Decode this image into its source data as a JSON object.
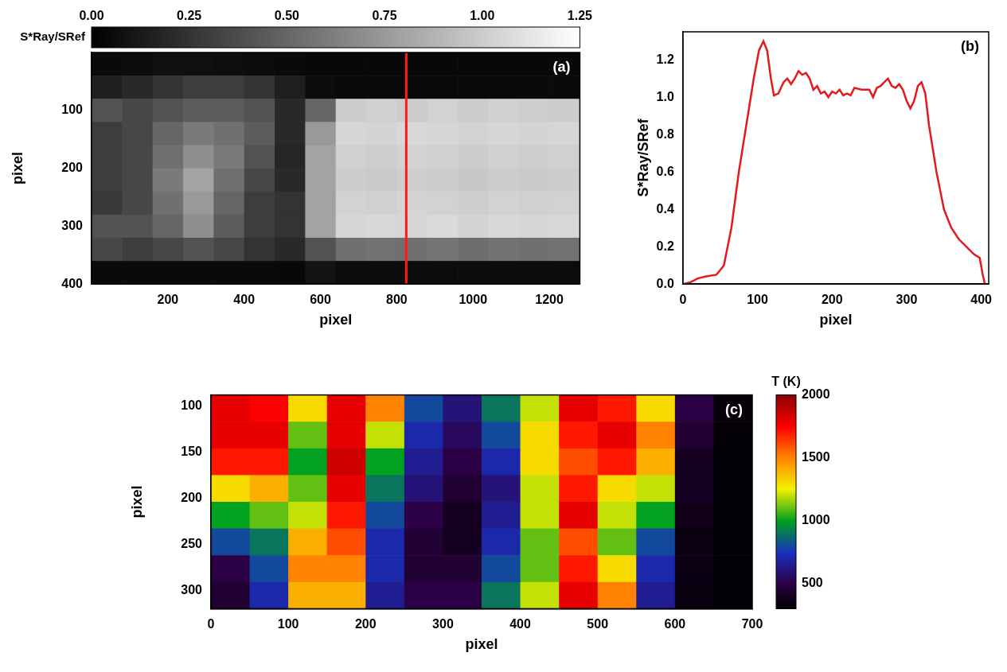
{
  "chart_data": [
    {
      "type": "heatmap",
      "title": "(a)",
      "x_label": "pixel",
      "y_label": "pixel",
      "xlim": [
        0,
        1280
      ],
      "xticks": [
        200,
        400,
        600,
        800,
        1000,
        1200
      ],
      "ylim": [
        0,
        400
      ],
      "yticks": [
        100,
        200,
        300,
        400
      ],
      "grid": false,
      "x_edges": [
        0,
        80,
        160,
        240,
        320,
        400,
        480,
        560,
        640,
        720,
        800,
        880,
        960,
        1040,
        1120,
        1200,
        1280
      ],
      "y_edges": [
        0,
        40,
        80,
        120,
        160,
        200,
        240,
        280,
        320,
        360,
        400
      ],
      "cells": [
        [
          0.05,
          0.06,
          0.08,
          0.08,
          0.07,
          0.06,
          0.05,
          0.04,
          0.04,
          0.04,
          0.04,
          0.04,
          0.04,
          0.04,
          0.04,
          0.04
        ],
        [
          0.15,
          0.2,
          0.25,
          0.3,
          0.3,
          0.25,
          0.15,
          0.06,
          0.05,
          0.05,
          0.05,
          0.05,
          0.05,
          0.05,
          0.05,
          0.05
        ],
        [
          0.4,
          0.35,
          0.4,
          0.45,
          0.45,
          0.4,
          0.2,
          0.5,
          1.0,
          1.02,
          1.0,
          1.03,
          1.0,
          1.02,
          1.01,
          1.0
        ],
        [
          0.3,
          0.35,
          0.5,
          0.6,
          0.55,
          0.45,
          0.2,
          0.75,
          1.05,
          1.04,
          1.06,
          1.05,
          1.03,
          1.05,
          1.04,
          1.05
        ],
        [
          0.3,
          0.35,
          0.55,
          0.7,
          0.6,
          0.4,
          0.18,
          0.8,
          1.02,
          1.01,
          1.03,
          1.02,
          1.0,
          1.02,
          1.01,
          1.02
        ],
        [
          0.3,
          0.35,
          0.6,
          0.8,
          0.55,
          0.35,
          0.2,
          0.8,
          1.0,
          0.99,
          1.01,
          1.0,
          0.98,
          1.0,
          0.99,
          1.0
        ],
        [
          0.28,
          0.35,
          0.55,
          0.75,
          0.5,
          0.3,
          0.25,
          0.8,
          1.03,
          1.02,
          1.04,
          1.03,
          1.01,
          1.03,
          1.02,
          1.03
        ],
        [
          0.4,
          0.4,
          0.5,
          0.7,
          0.45,
          0.3,
          0.25,
          0.8,
          1.05,
          1.06,
          1.05,
          1.07,
          1.04,
          1.06,
          1.05,
          1.06
        ],
        [
          0.35,
          0.3,
          0.35,
          0.4,
          0.35,
          0.25,
          0.2,
          0.4,
          0.55,
          0.56,
          0.55,
          0.57,
          0.54,
          0.56,
          0.55,
          0.56
        ],
        [
          0.05,
          0.05,
          0.05,
          0.05,
          0.05,
          0.05,
          0.04,
          0.1,
          0.06,
          0.06,
          0.06,
          0.06,
          0.06,
          0.06,
          0.06,
          0.06
        ]
      ],
      "colorbar": {
        "label": "S*Ray/SRef",
        "range": [
          0,
          1.25
        ],
        "ticks": [
          {
            "value": 0,
            "label": "0.00"
          },
          {
            "value": 0.25,
            "label": "0.25"
          },
          {
            "value": 0.5,
            "label": "0.50"
          },
          {
            "value": 0.75,
            "label": "0.75"
          },
          {
            "value": 1,
            "label": "1.00"
          },
          {
            "value": 1.25,
            "label": "1.25"
          }
        ]
      },
      "vline": 825
    },
    {
      "type": "line",
      "title": "(b)",
      "x_label": "pixel",
      "y_label": "S*Ray/SRef",
      "color": "#e4191c",
      "x": [
        0,
        10,
        20,
        30,
        45,
        55,
        65,
        75,
        85,
        95,
        102,
        108,
        113,
        118,
        122,
        128,
        135,
        140,
        145,
        150,
        155,
        160,
        165,
        170,
        175,
        180,
        185,
        190,
        195,
        200,
        205,
        210,
        215,
        220,
        225,
        230,
        240,
        250,
        255,
        260,
        265,
        270,
        275,
        280,
        285,
        290,
        295,
        300,
        305,
        310,
        315,
        320,
        325,
        330,
        340,
        350,
        360,
        370,
        380,
        390,
        398,
        402,
        405
      ],
      "values": [
        0,
        0.01,
        0.03,
        0.04,
        0.05,
        0.1,
        0.3,
        0.6,
        0.85,
        1.1,
        1.25,
        1.3,
        1.25,
        1.1,
        1.01,
        1.02,
        1.08,
        1.1,
        1.07,
        1.1,
        1.14,
        1.12,
        1.13,
        1.1,
        1.04,
        1.06,
        1.02,
        1.03,
        1.0,
        1.03,
        1.02,
        1.04,
        1.01,
        1.02,
        1.01,
        1.05,
        1.04,
        1.04,
        1.0,
        1.05,
        1.06,
        1.08,
        1.1,
        1.06,
        1.05,
        1.07,
        1.04,
        0.98,
        0.94,
        0.98,
        1.06,
        1.08,
        1.02,
        0.85,
        0.6,
        0.4,
        0.3,
        0.24,
        0.2,
        0.16,
        0.14,
        0.05,
        0.0
      ],
      "xlim": [
        0,
        410
      ],
      "xticks": [
        0,
        100,
        200,
        300,
        400
      ],
      "ylim": [
        0,
        1.35
      ],
      "yticks": [
        {
          "value": 0,
          "label": "0.0"
        },
        {
          "value": 0.2,
          "label": "0.2"
        },
        {
          "value": 0.4,
          "label": "0.4"
        },
        {
          "value": 0.6,
          "label": "0.6"
        },
        {
          "value": 0.8,
          "label": "0.8"
        },
        {
          "value": 1,
          "label": "1.0"
        },
        {
          "value": 1.2,
          "label": "1.2"
        }
      ],
      "grid": false
    },
    {
      "type": "heatmap",
      "title": "(c)",
      "x_label": "pixel",
      "y_label": "pixel",
      "xlim": [
        0,
        700
      ],
      "xticks": [
        0,
        100,
        200,
        300,
        400,
        500,
        600,
        700
      ],
      "ylim": [
        88,
        320
      ],
      "yticks": [
        100,
        150,
        200,
        250,
        300
      ],
      "grid": false,
      "x_edges": [
        0,
        50,
        100,
        150,
        200,
        250,
        300,
        350,
        400,
        450,
        500,
        550,
        600,
        650,
        700
      ],
      "y_edges": [
        88,
        117,
        146,
        175,
        204,
        233,
        262,
        291,
        320
      ],
      "cells": [
        [
          1800,
          1750,
          1300,
          1800,
          1500,
          800,
          600,
          900,
          1200,
          1800,
          1700,
          1300,
          500,
          330
        ],
        [
          1800,
          1800,
          1100,
          1800,
          1200,
          700,
          550,
          800,
          1300,
          1700,
          1800,
          1500,
          450,
          320
        ],
        [
          1700,
          1700,
          1000,
          1850,
          1000,
          650,
          500,
          700,
          1300,
          1600,
          1700,
          1400,
          400,
          320
        ],
        [
          1300,
          1400,
          1100,
          1800,
          900,
          600,
          450,
          600,
          1200,
          1700,
          1300,
          1200,
          400,
          320
        ],
        [
          1000,
          1100,
          1200,
          1700,
          800,
          500,
          400,
          650,
          1200,
          1800,
          1200,
          1000,
          380,
          320
        ],
        [
          800,
          900,
          1400,
          1600,
          700,
          450,
          400,
          700,
          1100,
          1600,
          1100,
          800,
          350,
          320
        ],
        [
          500,
          800,
          1500,
          1500,
          700,
          450,
          450,
          800,
          1100,
          1700,
          1300,
          700,
          350,
          320
        ],
        [
          450,
          700,
          1400,
          1400,
          650,
          500,
          500,
          900,
          1200,
          1800,
          1500,
          650,
          340,
          320
        ]
      ],
      "colorbar": {
        "label": "T (K)",
        "range": [
          300,
          2000
        ],
        "ticks": [
          500,
          1000,
          1500,
          2000
        ]
      }
    }
  ]
}
